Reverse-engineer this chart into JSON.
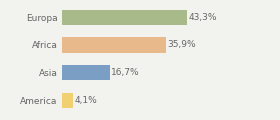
{
  "categories": [
    "Europa",
    "Africa",
    "Asia",
    "America"
  ],
  "values": [
    43.3,
    35.9,
    16.7,
    4.1
  ],
  "labels": [
    "43,3%",
    "35,9%",
    "16,7%",
    "4,1%"
  ],
  "bar_colors": [
    "#a8ba8a",
    "#e8b98a",
    "#7b9fc4",
    "#f0d070"
  ],
  "background_color": "#f2f2ee",
  "text_color": "#666666",
  "label_fontsize": 6.5,
  "category_fontsize": 6.5,
  "bar_height": 0.55,
  "xlim": [
    0,
    58
  ]
}
